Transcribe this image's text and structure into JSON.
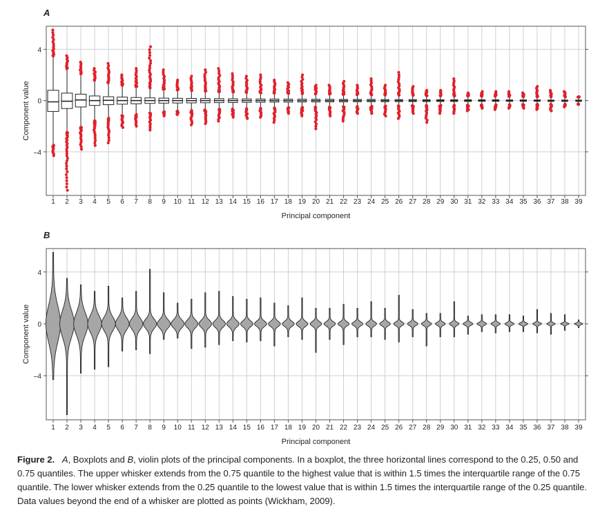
{
  "chart_data": [
    {
      "panel": "A",
      "type": "box",
      "xlabel": "Principal component",
      "ylabel": "Component value",
      "categories": [
        "1",
        "2",
        "3",
        "4",
        "5",
        "6",
        "7",
        "8",
        "9",
        "10",
        "11",
        "12",
        "13",
        "14",
        "15",
        "16",
        "17",
        "18",
        "19",
        "20",
        "21",
        "22",
        "23",
        "24",
        "25",
        "26",
        "27",
        "28",
        "29",
        "30",
        "31",
        "32",
        "33",
        "34",
        "35",
        "36",
        "37",
        "38",
        "39"
      ],
      "yticks": [
        -4,
        0,
        4
      ],
      "ylim": [
        -7.4,
        5.8
      ],
      "grid": true,
      "outlier_color": "#e0202a",
      "box_color": "#ffffff",
      "series": [
        {
          "q1": [
            -0.85,
            -0.62,
            -0.5,
            -0.38,
            -0.32,
            -0.28,
            -0.25,
            -0.22,
            -0.2,
            -0.19,
            -0.18,
            -0.17,
            -0.16,
            -0.15,
            -0.14,
            -0.13,
            -0.12,
            -0.12,
            -0.11,
            -0.11,
            -0.1,
            -0.1,
            -0.09,
            -0.09,
            -0.09,
            -0.08,
            -0.08,
            -0.08,
            -0.07,
            -0.07,
            -0.07,
            -0.06,
            -0.06,
            -0.06,
            -0.05,
            -0.05,
            -0.05,
            -0.04,
            -0.04
          ],
          "med": [
            -0.1,
            -0.05,
            0.05,
            0.0,
            0.02,
            0.0,
            0.0,
            0.0,
            0.0,
            0.0,
            0.0,
            0.0,
            0.0,
            0.0,
            0.0,
            0.0,
            0.0,
            0.0,
            0.0,
            0.0,
            0.0,
            0.0,
            0.0,
            0.0,
            0.0,
            0.0,
            0.0,
            0.0,
            0.0,
            0.0,
            0.0,
            0.0,
            0.0,
            0.0,
            0.0,
            0.0,
            0.0,
            0.0,
            0.0
          ],
          "q3": [
            0.8,
            0.58,
            0.5,
            0.36,
            0.3,
            0.27,
            0.24,
            0.21,
            0.19,
            0.18,
            0.17,
            0.16,
            0.15,
            0.14,
            0.13,
            0.12,
            0.12,
            0.11,
            0.11,
            0.1,
            0.1,
            0.09,
            0.09,
            0.09,
            0.08,
            0.08,
            0.08,
            0.07,
            0.07,
            0.07,
            0.06,
            0.06,
            0.06,
            0.05,
            0.05,
            0.05,
            0.04,
            0.04,
            0.04
          ],
          "wlo": [
            -3.4,
            -2.4,
            -2.0,
            -1.5,
            -1.3,
            -1.1,
            -1.0,
            -0.9,
            -0.8,
            -0.75,
            -0.7,
            -0.65,
            -0.6,
            -0.58,
            -0.55,
            -0.52,
            -0.5,
            -0.48,
            -0.45,
            -0.43,
            -0.42,
            -0.4,
            -0.38,
            -0.36,
            -0.35,
            -0.33,
            -0.32,
            -0.3,
            -0.29,
            -0.28,
            -0.27,
            -0.26,
            -0.25,
            -0.24,
            -0.23,
            -0.22,
            -0.21,
            -0.2,
            -0.19
          ],
          "whi": [
            3.4,
            2.4,
            2.0,
            1.5,
            1.3,
            1.1,
            1.0,
            0.9,
            0.8,
            0.75,
            0.7,
            0.65,
            0.6,
            0.58,
            0.55,
            0.52,
            0.5,
            0.48,
            0.45,
            0.43,
            0.42,
            0.4,
            0.38,
            0.36,
            0.35,
            0.33,
            0.32,
            0.3,
            0.29,
            0.28,
            0.27,
            0.26,
            0.25,
            0.24,
            0.23,
            0.22,
            0.21,
            0.2,
            0.19
          ],
          "ymin": [
            -4.3,
            -7.0,
            -3.8,
            -3.5,
            -3.3,
            -2.1,
            -2.0,
            -2.3,
            -1.2,
            -1.1,
            -1.9,
            -1.8,
            -1.6,
            -1.3,
            -1.4,
            -1.3,
            -1.7,
            -1.0,
            -1.2,
            -2.2,
            -1.2,
            -1.6,
            -1.0,
            -1.0,
            -1.2,
            -1.4,
            -1.0,
            -1.7,
            -1.0,
            -1.0,
            -0.8,
            -0.6,
            -0.7,
            -0.6,
            -0.6,
            -0.7,
            -0.8,
            -0.5,
            -0.3
          ],
          "ymax": [
            5.5,
            3.5,
            3.0,
            2.5,
            2.9,
            2.0,
            2.5,
            4.2,
            2.4,
            1.6,
            1.9,
            2.4,
            2.5,
            2.1,
            1.9,
            2.0,
            1.6,
            1.4,
            2.0,
            1.2,
            1.2,
            1.5,
            1.2,
            1.7,
            1.2,
            2.2,
            1.1,
            0.8,
            0.8,
            1.7,
            0.6,
            0.7,
            0.7,
            0.7,
            0.6,
            1.1,
            0.8,
            0.7,
            0.3
          ]
        }
      ]
    },
    {
      "panel": "B",
      "type": "violin",
      "xlabel": "Principal component",
      "ylabel": "Component value",
      "categories": [
        "1",
        "2",
        "3",
        "4",
        "5",
        "6",
        "7",
        "8",
        "9",
        "10",
        "11",
        "12",
        "13",
        "14",
        "15",
        "16",
        "17",
        "18",
        "19",
        "20",
        "21",
        "22",
        "23",
        "24",
        "25",
        "26",
        "27",
        "28",
        "29",
        "30",
        "31",
        "32",
        "33",
        "34",
        "35",
        "36",
        "37",
        "38",
        "39"
      ],
      "yticks": [
        -4,
        0,
        4
      ],
      "ylim": [
        -7.4,
        5.8
      ],
      "grid": true,
      "fill_color": "#a6a6a6"
    }
  ],
  "figure": {
    "panel_a_label": "A",
    "panel_b_label": "B"
  },
  "caption": {
    "lead": "Figure 2.",
    "part1": "A",
    "part2": ", Boxplots and ",
    "part3": "B",
    "part4": ", violin plots of the principal components. In a boxplot, the three horizontal lines correspond to the 0.25, 0.50 and 0.75 quantiles. The upper whisker extends from the 0.75 quantile to the highest value that is within 1.5 times the interquartile range of the 0.75 quantile. The lower whisker extends from the 0.25 quantile to the lowest value that is within 1.5 times the interquartile range of the 0.25 quantile. Data values beyond the end of a whisker are plotted as points (Wickham, 2009)."
  }
}
